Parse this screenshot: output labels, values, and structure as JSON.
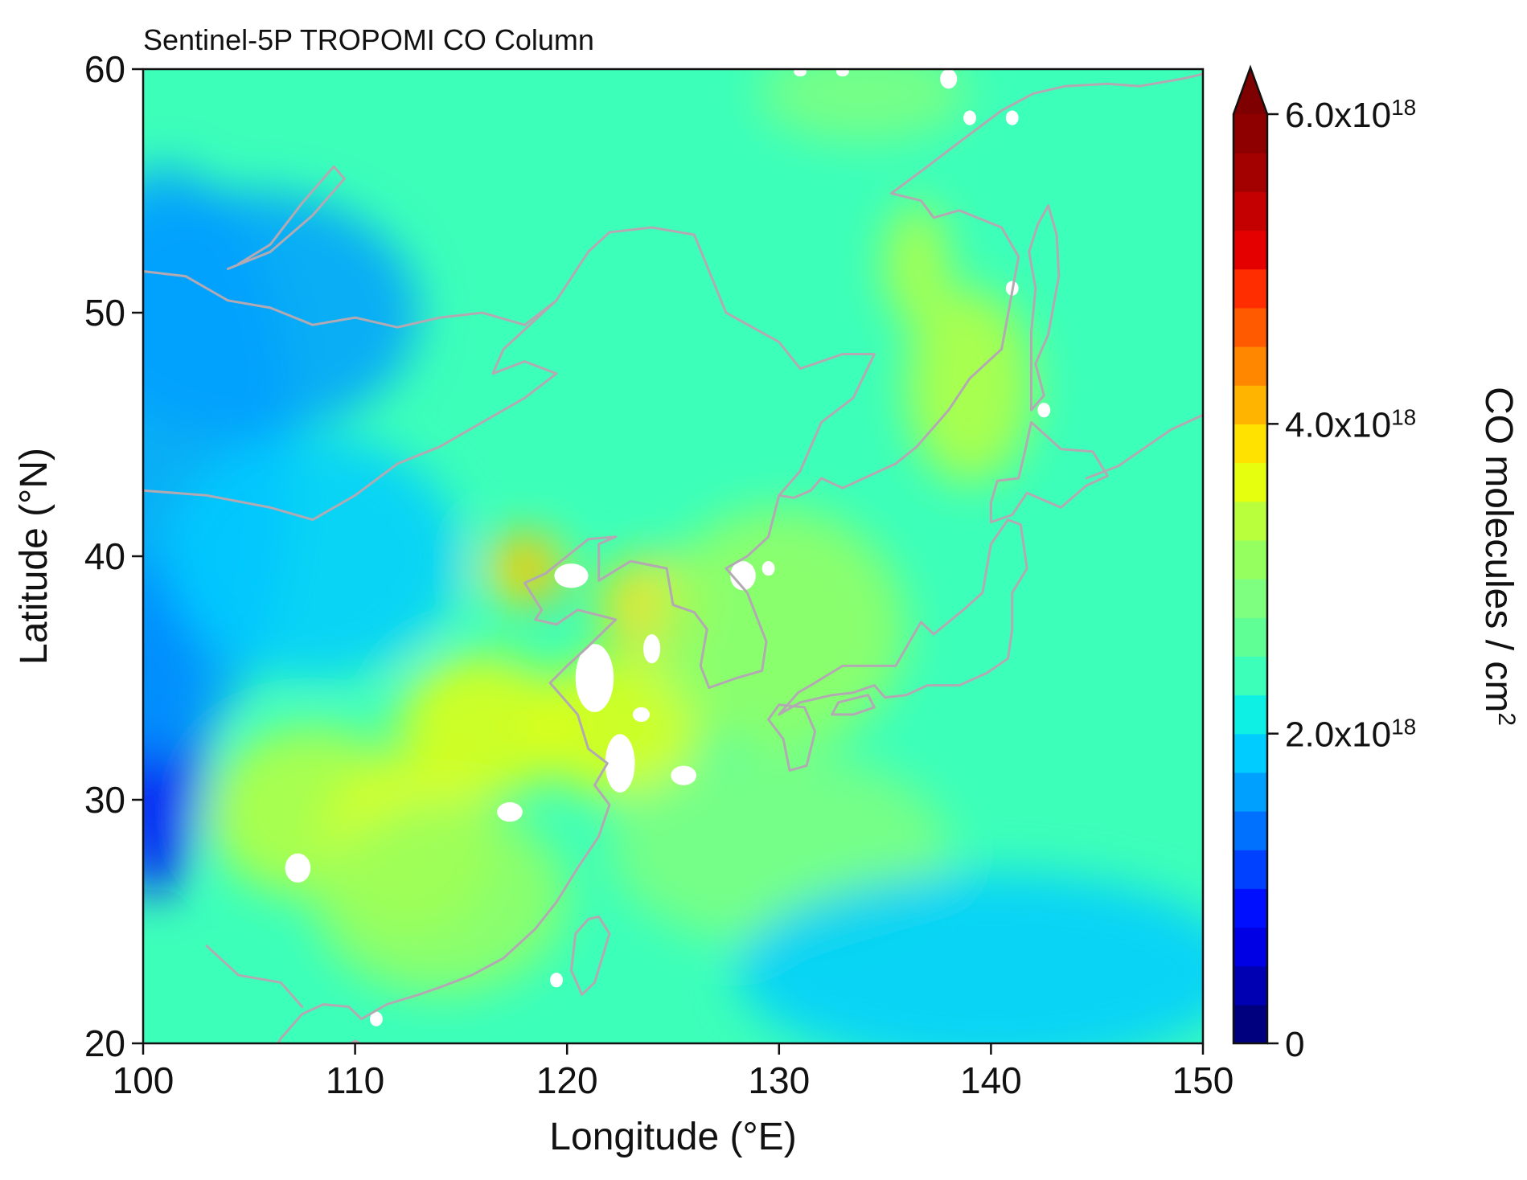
{
  "title": "Sentinel-5P TROPOMI CO Column",
  "x_axis": {
    "label": "Longitude (°E)",
    "min": 100,
    "max": 150,
    "ticks": [
      {
        "value": 100,
        "label": "100"
      },
      {
        "value": 110,
        "label": "110"
      },
      {
        "value": 120,
        "label": "120"
      },
      {
        "value": 130,
        "label": "130"
      },
      {
        "value": 140,
        "label": "140"
      },
      {
        "value": 150,
        "label": "150"
      }
    ]
  },
  "y_axis": {
    "label": "Latitude (°N)",
    "min": 20,
    "max": 60,
    "ticks": [
      {
        "value": 20,
        "label": "20"
      },
      {
        "value": 30,
        "label": "30"
      },
      {
        "value": 40,
        "label": "40"
      },
      {
        "value": 50,
        "label": "50"
      },
      {
        "value": 60,
        "label": "60"
      }
    ]
  },
  "colorbar": {
    "label_base": "CO molecules / cm",
    "label_sup": "2",
    "min": 0,
    "max": 6e+18,
    "levels": 24,
    "extend": "max",
    "ticks": [
      {
        "value": 0,
        "label": "0",
        "sup": ""
      },
      {
        "value": 2e+18,
        "label": "2.0x10",
        "sup": "18"
      },
      {
        "value": 4e+18,
        "label": "4.0x10",
        "sup": "18"
      },
      {
        "value": 6e+18,
        "label": "6.0x10",
        "sup": "18"
      }
    ],
    "colormap": "jet",
    "colors": [
      "#00007f",
      "#0000b2",
      "#0000e5",
      "#0010ff",
      "#0040ff",
      "#0070ff",
      "#00a0ff",
      "#00ccff",
      "#0ff0e5",
      "#3cffba",
      "#60ff96",
      "#7fff7f",
      "#96ff60",
      "#baff3c",
      "#e5ff0f",
      "#ffe200",
      "#ffb400",
      "#ff8700",
      "#ff5a00",
      "#ff2d00",
      "#e50000",
      "#c40000",
      "#a30000",
      "#8e0000"
    ],
    "extend_color": "#7f0000"
  },
  "map_field": {
    "description_type": "filled-contour",
    "base_value": 2.3e+18,
    "missing_color": "#ffffff",
    "coast_color": "#b3a9b2",
    "features": [
      {
        "lon": 100.5,
        "lat": 33.0,
        "value": 9e+17,
        "rx": 2.5,
        "ry": 7.0
      },
      {
        "lon": 101.0,
        "lat": 44.0,
        "value": 1.6e+18,
        "rx": 6.0,
        "ry": 12.0
      },
      {
        "lon": 105.0,
        "lat": 50.0,
        "value": 1.7e+18,
        "rx": 8.0,
        "ry": 5.0
      },
      {
        "lon": 108.0,
        "lat": 40.0,
        "value": 1.8e+18,
        "rx": 7.0,
        "ry": 5.0
      },
      {
        "lon": 108.0,
        "lat": 29.5,
        "value": 3.4e+18,
        "rx": 5.0,
        "ry": 3.5
      },
      {
        "lon": 112.5,
        "lat": 28.0,
        "value": 3.6e+18,
        "rx": 4.0,
        "ry": 3.5
      },
      {
        "lon": 116.0,
        "lat": 33.0,
        "value": 3.7e+18,
        "rx": 4.0,
        "ry": 3.0
      },
      {
        "lon": 118.0,
        "lat": 39.5,
        "value": 3.9e+18,
        "rx": 2.0,
        "ry": 1.5
      },
      {
        "lon": 118.0,
        "lat": 40.0,
        "value": 5.2e+18,
        "rx": 0.5,
        "ry": 0.5
      },
      {
        "lon": 118.8,
        "lat": 38.5,
        "value": 4.8e+18,
        "rx": 0.5,
        "ry": 0.4
      },
      {
        "lon": 124.0,
        "lat": 38.0,
        "value": 3.8e+18,
        "rx": 2.5,
        "ry": 2.0
      },
      {
        "lon": 125.0,
        "lat": 37.0,
        "value": 4.6e+18,
        "rx": 0.6,
        "ry": 0.4
      },
      {
        "lon": 122.5,
        "lat": 33.0,
        "value": 3.5e+18,
        "rx": 4.0,
        "ry": 3.0
      },
      {
        "lon": 114.0,
        "lat": 26.0,
        "value": 3.2e+18,
        "rx": 6.0,
        "ry": 4.0
      },
      {
        "lon": 130.0,
        "lat": 37.0,
        "value": 3.1e+18,
        "rx": 6.0,
        "ry": 5.0
      },
      {
        "lon": 139.0,
        "lat": 47.0,
        "value": 3.4e+18,
        "rx": 3.0,
        "ry": 4.0
      },
      {
        "lon": 136.5,
        "lat": 52.0,
        "value": 3.3e+18,
        "rx": 1.5,
        "ry": 2.5
      },
      {
        "lon": 130.0,
        "lat": 28.0,
        "value": 2.8e+18,
        "rx": 8.0,
        "ry": 4.0
      },
      {
        "lon": 140.0,
        "lat": 23.0,
        "value": 1.9e+18,
        "rx": 12.0,
        "ry": 4.0
      },
      {
        "lon": 134.0,
        "lat": 59.0,
        "value": 2.9e+18,
        "rx": 5.0,
        "ry": 2.0
      }
    ],
    "missing_patches": [
      {
        "lon": 121.3,
        "lat": 35.0,
        "rx": 0.9,
        "ry": 1.4
      },
      {
        "lon": 120.2,
        "lat": 39.2,
        "rx": 0.8,
        "ry": 0.5
      },
      {
        "lon": 124.0,
        "lat": 36.2,
        "rx": 0.4,
        "ry": 0.6
      },
      {
        "lon": 123.5,
        "lat": 33.5,
        "rx": 0.4,
        "ry": 0.3
      },
      {
        "lon": 122.5,
        "lat": 31.5,
        "rx": 0.7,
        "ry": 1.2
      },
      {
        "lon": 125.5,
        "lat": 31.0,
        "rx": 0.6,
        "ry": 0.4
      },
      {
        "lon": 117.3,
        "lat": 29.5,
        "rx": 0.6,
        "ry": 0.4
      },
      {
        "lon": 107.3,
        "lat": 27.2,
        "rx": 0.6,
        "ry": 0.6
      },
      {
        "lon": 128.3,
        "lat": 39.2,
        "rx": 0.6,
        "ry": 0.6
      },
      {
        "lon": 129.5,
        "lat": 39.5,
        "rx": 0.3,
        "ry": 0.3
      },
      {
        "lon": 119.5,
        "lat": 22.6,
        "rx": 0.3,
        "ry": 0.3
      },
      {
        "lon": 111.0,
        "lat": 21.0,
        "rx": 0.3,
        "ry": 0.3
      },
      {
        "lon": 142.5,
        "lat": 46.0,
        "rx": 0.3,
        "ry": 0.3
      },
      {
        "lon": 141.0,
        "lat": 51.0,
        "rx": 0.3,
        "ry": 0.3
      },
      {
        "lon": 139.0,
        "lat": 58.0,
        "rx": 0.3,
        "ry": 0.3
      },
      {
        "lon": 141.0,
        "lat": 58.0,
        "rx": 0.3,
        "ry": 0.3
      },
      {
        "lon": 138.0,
        "lat": 59.6,
        "rx": 0.4,
        "ry": 0.4
      },
      {
        "lon": 131.0,
        "lat": 59.9,
        "rx": 0.3,
        "ry": 0.2
      },
      {
        "lon": 133.0,
        "lat": 59.9,
        "rx": 0.3,
        "ry": 0.2
      }
    ],
    "coastlines": [
      [
        [
          100,
          51.7
        ],
        [
          102,
          51.5
        ],
        [
          104,
          50.5
        ],
        [
          106,
          50.2
        ],
        [
          108,
          49.5
        ],
        [
          110,
          49.8
        ],
        [
          112,
          49.4
        ],
        [
          114,
          49.8
        ],
        [
          116,
          50.0
        ],
        [
          118,
          49.5
        ],
        [
          119.5,
          50.5
        ]
      ],
      [
        [
          100,
          42.7
        ],
        [
          103,
          42.5
        ],
        [
          106,
          42.0
        ],
        [
          108,
          41.5
        ],
        [
          110,
          42.5
        ],
        [
          112,
          43.8
        ],
        [
          114,
          44.5
        ],
        [
          116,
          45.5
        ],
        [
          118,
          46.5
        ],
        [
          119.5,
          47.5
        ]
      ],
      [
        [
          104,
          51.8
        ],
        [
          106,
          52.5
        ],
        [
          108,
          54.0
        ],
        [
          109.5,
          55.5
        ],
        [
          109,
          56
        ],
        [
          107.5,
          54.5
        ],
        [
          106,
          52.8
        ],
        [
          104.5,
          52.0
        ]
      ],
      [
        [
          119.5,
          50.5
        ],
        [
          121,
          52.5
        ],
        [
          122,
          53.3
        ],
        [
          124,
          53.5
        ],
        [
          126,
          53.2
        ],
        [
          127.5,
          50.0
        ],
        [
          130,
          48.8
        ],
        [
          131,
          47.7
        ],
        [
          133,
          48.3
        ],
        [
          134.5,
          48.3
        ],
        [
          133.5,
          46.5
        ],
        [
          132,
          45.5
        ],
        [
          131,
          43.5
        ],
        [
          130,
          42.5
        ]
      ],
      [
        [
          119.5,
          47.5
        ],
        [
          118,
          48
        ],
        [
          116.5,
          47.5
        ],
        [
          117,
          48.5
        ],
        [
          119.5,
          50.5
        ]
      ],
      [
        [
          130,
          42.5
        ],
        [
          129.5,
          40.8
        ],
        [
          128.5,
          40
        ],
        [
          127.5,
          39.5
        ],
        [
          128.5,
          38.5
        ],
        [
          129.4,
          36.5
        ],
        [
          129.2,
          35.3
        ],
        [
          128,
          35
        ],
        [
          126.7,
          34.6
        ],
        [
          126.3,
          35.5
        ],
        [
          126.6,
          37
        ],
        [
          126,
          37.7
        ],
        [
          125,
          38
        ],
        [
          124.7,
          39.5
        ],
        [
          123,
          39.8
        ],
        [
          121.5,
          39
        ],
        [
          121.5,
          40.5
        ],
        [
          122.3,
          40.8
        ],
        [
          121,
          40.7
        ],
        [
          120,
          40
        ],
        [
          119,
          39.3
        ],
        [
          118,
          38.9
        ],
        [
          118.8,
          37.8
        ],
        [
          118.5,
          37.4
        ],
        [
          119.5,
          37.2
        ],
        [
          120.5,
          37.8
        ],
        [
          122.3,
          37.4
        ],
        [
          121,
          36.3
        ],
        [
          120,
          35.5
        ],
        [
          119.2,
          34.8
        ],
        [
          120.5,
          33.5
        ],
        [
          121,
          32.1
        ],
        [
          121.9,
          31.5
        ],
        [
          121.3,
          30.6
        ],
        [
          122,
          29.8
        ],
        [
          121.5,
          28.5
        ],
        [
          120.5,
          27.2
        ],
        [
          119.5,
          25.8
        ],
        [
          118.5,
          24.7
        ],
        [
          117,
          23.5
        ],
        [
          115.5,
          22.8
        ],
        [
          114,
          22.3
        ],
        [
          113,
          22
        ],
        [
          111.5,
          21.6
        ],
        [
          110.3,
          21
        ],
        [
          109.7,
          21.5
        ],
        [
          108.5,
          21.6
        ],
        [
          107.5,
          21.2
        ],
        [
          106.5,
          20.2
        ],
        [
          105.8,
          19.2
        ]
      ],
      [
        [
          121.5,
          25.2
        ],
        [
          122,
          24.5
        ],
        [
          121.3,
          22.5
        ],
        [
          120.7,
          22
        ],
        [
          120.2,
          23
        ],
        [
          120.4,
          24.5
        ],
        [
          121,
          25.1
        ],
        [
          121.5,
          25.2
        ]
      ],
      [
        [
          110,
          20.1
        ],
        [
          111,
          19.7
        ],
        [
          110.5,
          18.5
        ],
        [
          109,
          18.2
        ],
        [
          108.7,
          19.5
        ],
        [
          110,
          20.1
        ]
      ],
      [
        [
          130,
          33.5
        ],
        [
          131,
          34
        ],
        [
          132.5,
          34.3
        ],
        [
          133.5,
          34.4
        ],
        [
          134.5,
          34.7
        ],
        [
          135,
          34.2
        ],
        [
          136,
          34.3
        ],
        [
          137,
          34.7
        ],
        [
          138.5,
          34.7
        ],
        [
          139.8,
          35.2
        ],
        [
          140.8,
          35.8
        ],
        [
          141,
          37
        ],
        [
          141,
          38.5
        ],
        [
          141.7,
          39.5
        ],
        [
          141.4,
          41.3
        ],
        [
          140.8,
          41.5
        ],
        [
          140,
          40.5
        ],
        [
          139.8,
          39.5
        ],
        [
          139.6,
          38.5
        ],
        [
          138.7,
          37.8
        ],
        [
          137.3,
          36.8
        ],
        [
          136.7,
          37.3
        ],
        [
          135.5,
          35.5
        ],
        [
          133,
          35.5
        ],
        [
          131.5,
          34.7
        ],
        [
          130.9,
          34.4
        ],
        [
          130,
          33.5
        ]
      ],
      [
        [
          129.5,
          33.3
        ],
        [
          130.2,
          32.5
        ],
        [
          130.5,
          31.2
        ],
        [
          131.3,
          31.4
        ],
        [
          131.7,
          32.8
        ],
        [
          131.2,
          33.8
        ],
        [
          130,
          33.9
        ],
        [
          129.5,
          33.3
        ]
      ],
      [
        [
          132.5,
          33.5
        ],
        [
          133.5,
          33.5
        ],
        [
          134.5,
          33.8
        ],
        [
          134.2,
          34.3
        ],
        [
          132.8,
          34.0
        ],
        [
          132.5,
          33.5
        ]
      ],
      [
        [
          140,
          41.4
        ],
        [
          141,
          41.7
        ],
        [
          141.7,
          42.6
        ],
        [
          143.3,
          42
        ],
        [
          144.5,
          42.9
        ],
        [
          145.5,
          43.3
        ],
        [
          144.8,
          44.3
        ],
        [
          143.3,
          44.4
        ],
        [
          141.9,
          45.5
        ],
        [
          141.6,
          44.3
        ],
        [
          141.3,
          43.2
        ],
        [
          140.3,
          43.1
        ],
        [
          140,
          42.2
        ],
        [
          140,
          41.4
        ]
      ],
      [
        [
          141.9,
          46
        ],
        [
          142.5,
          46.6
        ],
        [
          142.1,
          47.9
        ],
        [
          142.7,
          49.1
        ],
        [
          143.2,
          51.5
        ],
        [
          143.1,
          53.2
        ],
        [
          142.7,
          54.4
        ],
        [
          142.2,
          53.6
        ],
        [
          141.8,
          52.5
        ],
        [
          142.1,
          51
        ],
        [
          141.9,
          49.2
        ],
        [
          141.9,
          46
        ]
      ],
      [
        [
          140.5,
          48.5
        ],
        [
          141.3,
          52.3
        ],
        [
          140.5,
          53.5
        ],
        [
          138.5,
          54.2
        ],
        [
          137.3,
          53.9
        ],
        [
          136.7,
          54.6
        ],
        [
          135.3,
          54.9
        ],
        [
          137,
          56
        ],
        [
          138.5,
          57
        ],
        [
          140.5,
          58.3
        ],
        [
          142,
          59
        ],
        [
          143.5,
          59.3
        ],
        [
          145.5,
          59.4
        ],
        [
          147,
          59.3
        ],
        [
          149,
          59.6
        ],
        [
          150,
          59.8
        ]
      ],
      [
        [
          140.5,
          48.5
        ],
        [
          139,
          47.3
        ],
        [
          138,
          46
        ],
        [
          136.5,
          44.5
        ],
        [
          135.5,
          43.8
        ],
        [
          134,
          43.2
        ],
        [
          133,
          42.8
        ],
        [
          132,
          43.2
        ],
        [
          131.5,
          42.7
        ],
        [
          130.7,
          42.4
        ],
        [
          130,
          42.5
        ]
      ],
      [
        [
          144.5,
          43.2
        ],
        [
          146,
          43.7
        ],
        [
          147,
          44.3
        ],
        [
          148.5,
          45.2
        ],
        [
          150,
          45.8
        ]
      ],
      [
        [
          103,
          24
        ],
        [
          104.5,
          22.8
        ],
        [
          106.5,
          22.5
        ],
        [
          107.5,
          21.5
        ]
      ]
    ]
  }
}
